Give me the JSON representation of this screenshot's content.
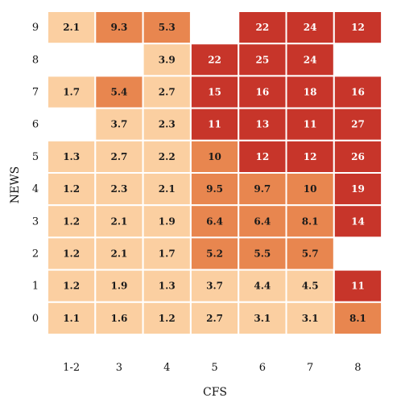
{
  "chart_data": {
    "type": "heatmap",
    "title": "",
    "xlabel": "CFS",
    "ylabel": "NEWS",
    "x_categories": [
      "1-2",
      "3",
      "4",
      "5",
      "6",
      "7",
      "8"
    ],
    "y_categories": [
      "9",
      "8",
      "7",
      "6",
      "5",
      "4",
      "3",
      "2",
      "1",
      "0"
    ],
    "values": [
      [
        2.1,
        9.3,
        5.3,
        null,
        22,
        24,
        12
      ],
      [
        null,
        null,
        3.9,
        22,
        25,
        24,
        null
      ],
      [
        1.7,
        5.4,
        2.7,
        15,
        16,
        18,
        16
      ],
      [
        null,
        3.7,
        2.3,
        11,
        13,
        11,
        27
      ],
      [
        1.3,
        2.7,
        2.2,
        10,
        12,
        12,
        26
      ],
      [
        1.2,
        2.3,
        2.1,
        9.5,
        9.7,
        10,
        19
      ],
      [
        1.2,
        2.1,
        1.9,
        6.4,
        6.4,
        8.1,
        14
      ],
      [
        1.2,
        2.1,
        1.7,
        5.2,
        5.5,
        5.7,
        null
      ],
      [
        1.2,
        1.9,
        1.3,
        3.7,
        4.4,
        4.5,
        11
      ],
      [
        1.1,
        1.6,
        1.2,
        2.7,
        3.1,
        3.1,
        8.1
      ]
    ],
    "labels": [
      [
        "2.1",
        "9.3",
        "5.3",
        "",
        "22",
        "24",
        "12"
      ],
      [
        "",
        "",
        "3.9",
        "22",
        "25",
        "24",
        ""
      ],
      [
        "1.7",
        "5.4",
        "2.7",
        "15",
        "16",
        "18",
        "16"
      ],
      [
        "",
        "3.7",
        "2.3",
        "11",
        "13",
        "11",
        "27"
      ],
      [
        "1.3",
        "2.7",
        "2.2",
        "10",
        "12",
        "12",
        "26"
      ],
      [
        "1.2",
        "2.3",
        "2.1",
        "9.5",
        "9.7",
        "10",
        "19"
      ],
      [
        "1.2",
        "2.1",
        "1.9",
        "6.4",
        "6.4",
        "8.1",
        "14"
      ],
      [
        "1.2",
        "2.1",
        "1.7",
        "5.2",
        "5.5",
        "5.7",
        ""
      ],
      [
        "1.2",
        "1.9",
        "1.3",
        "3.7",
        "4.4",
        "4.5",
        "11"
      ],
      [
        "1.1",
        "1.6",
        "1.2",
        "2.7",
        "3.1",
        "3.1",
        "8.1"
      ]
    ],
    "color_bins": [
      {
        "max": 4.5,
        "color": "#fbcfa1"
      },
      {
        "max": 10,
        "color": "#e8864f"
      },
      {
        "max": 1000,
        "color": "#c7352a"
      }
    ],
    "grid": false,
    "legend": "none"
  }
}
